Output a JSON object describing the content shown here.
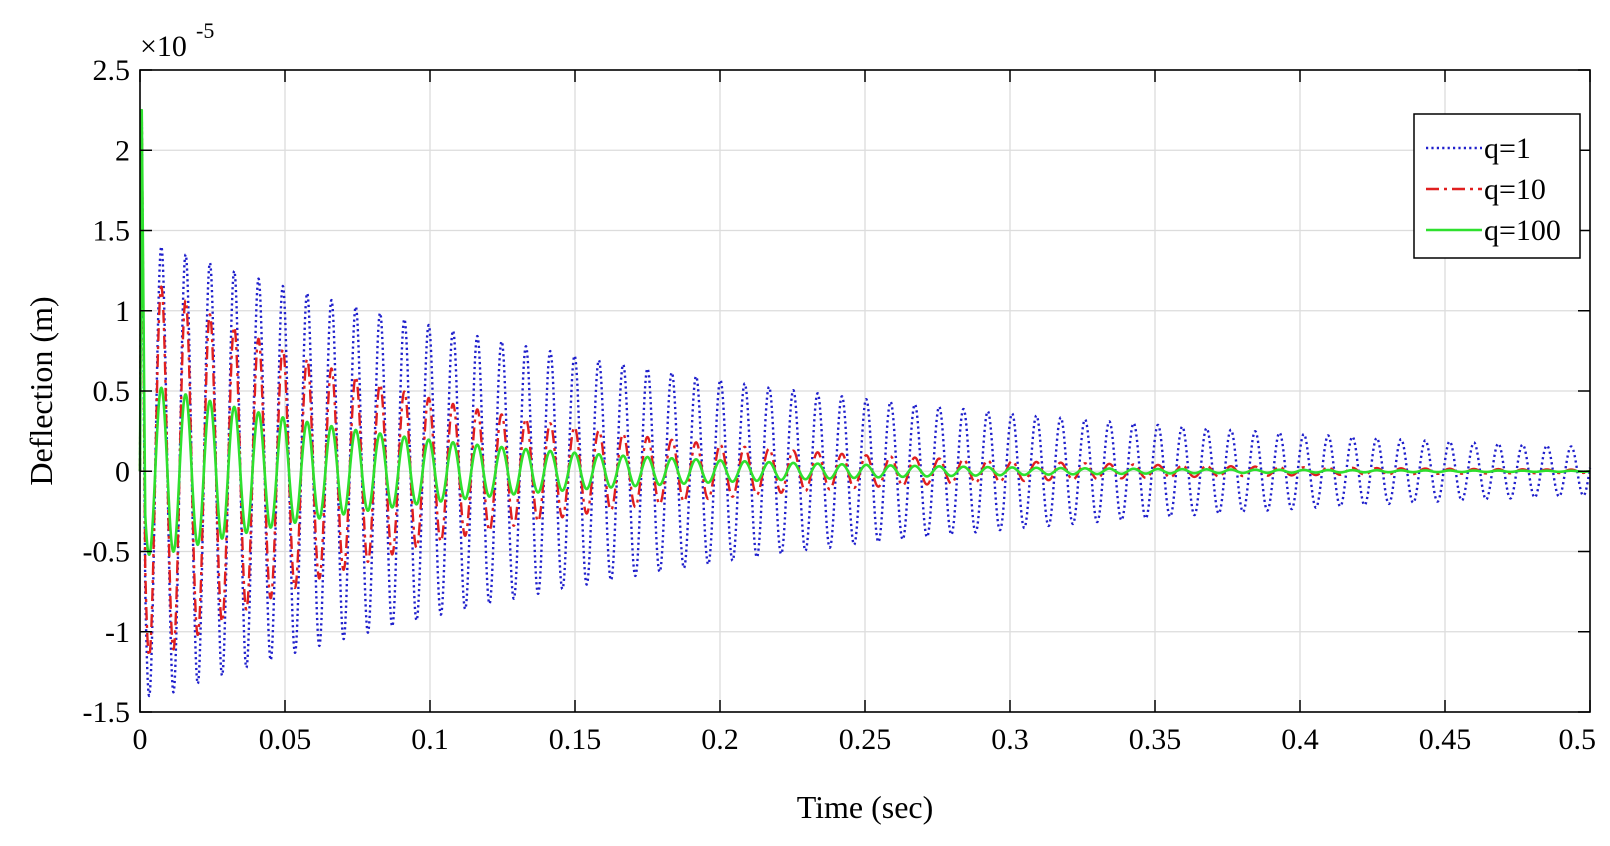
{
  "chart_data": {
    "type": "line",
    "title": "",
    "xlabel": "Time (sec)",
    "ylabel": "Deflection (m)",
    "y_exponent_label": "×10",
    "y_exponent_power": "-5",
    "xlim": [
      0,
      0.5
    ],
    "ylim": [
      -1.5,
      2.5
    ],
    "x_ticks": [
      0,
      0.05,
      0.1,
      0.15,
      0.2,
      0.25,
      0.3,
      0.35,
      0.4,
      0.45,
      0.5
    ],
    "x_tick_labels": [
      "0",
      "0.05",
      "0.1",
      "0.15",
      "0.2",
      "0.25",
      "0.3",
      "0.35",
      "0.4",
      "0.45",
      "0.5"
    ],
    "y_ticks": [
      -1.5,
      -1,
      -0.5,
      0,
      0.5,
      1,
      1.5,
      2,
      2.5
    ],
    "y_tick_labels": [
      "-1.5",
      "-1",
      "-0.5",
      "0",
      "0.5",
      "1",
      "1.5",
      "2",
      "2.5"
    ],
    "grid": true,
    "legend_position": "top-right",
    "series": [
      {
        "name": "q=1",
        "color": "#1f1fcc",
        "style": "dotted",
        "initial_peak": 2.25,
        "frequency_hz": 119.3,
        "envelope_peaks": [
          [
            0.008,
            1.4
          ],
          [
            0.25,
            0.45
          ],
          [
            0.5,
            0.15
          ]
        ]
      },
      {
        "name": "q=10",
        "color": "#e01f1f",
        "style": "dash-dot",
        "initial_peak": 2.25,
        "frequency_hz": 119.3,
        "envelope_peaks": [
          [
            0.008,
            1.15
          ],
          [
            0.25,
            0.1
          ],
          [
            0.5,
            0.01
          ]
        ]
      },
      {
        "name": "q=100",
        "color": "#2ee02e",
        "style": "solid",
        "initial_peak": 2.25,
        "frequency_hz": 119.3,
        "envelope_peaks": [
          [
            0.008,
            0.52
          ],
          [
            0.25,
            0.04
          ],
          [
            0.5,
            0.003
          ]
        ]
      }
    ]
  }
}
